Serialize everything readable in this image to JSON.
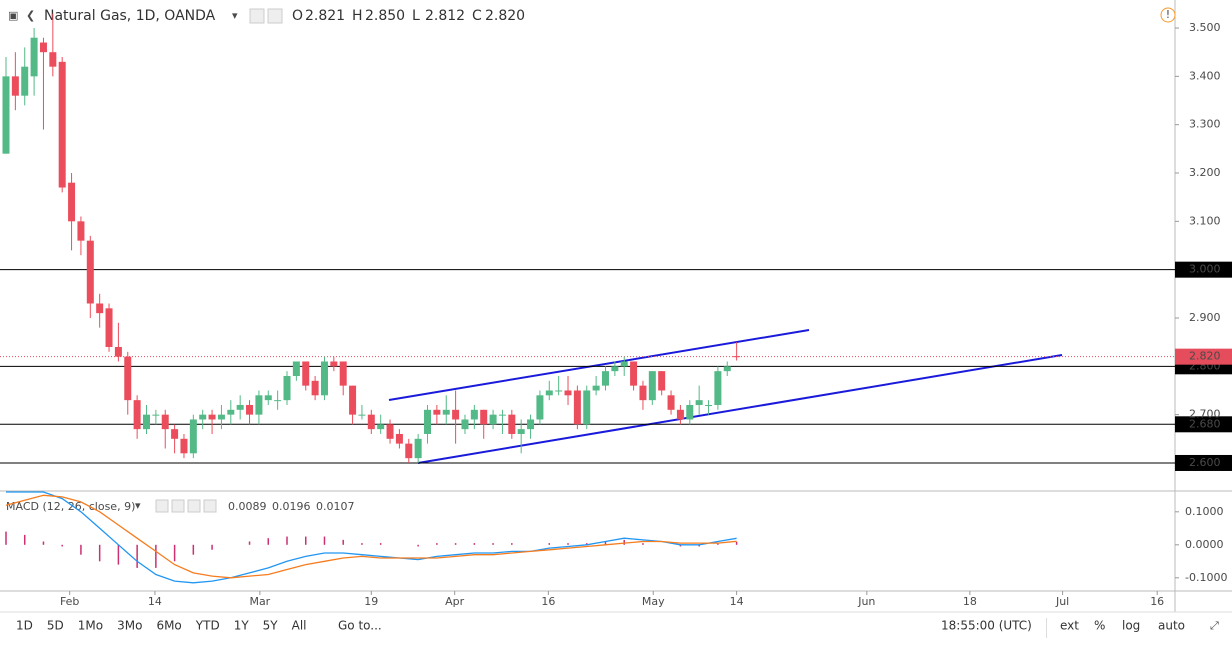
{
  "header": {
    "symbol": "Natural Gas, 1D, OANDA",
    "ohlc": [
      {
        "key": "O",
        "value": "2.821"
      },
      {
        "key": "H",
        "value": "2.850"
      },
      {
        "key": "L",
        "value": "2.812"
      },
      {
        "key": "C",
        "value": "2.820"
      }
    ]
  },
  "chart_data": [
    {
      "type": "candlestick",
      "up_color": "#53b987",
      "down_color": "#eb4d5c",
      "open": [
        3.24,
        3.4,
        3.36,
        3.4,
        3.47,
        3.45,
        3.43,
        3.18,
        3.1,
        3.06,
        2.93,
        2.92,
        2.84,
        2.82,
        2.73,
        2.67,
        2.7,
        2.7,
        2.67,
        2.65,
        2.62,
        2.69,
        2.7,
        2.69,
        2.7,
        2.71,
        2.72,
        2.7,
        2.73,
        2.73,
        2.73,
        2.78,
        2.81,
        2.77,
        2.74,
        2.81,
        2.81,
        2.76,
        2.7,
        2.7,
        2.67,
        2.68,
        2.66,
        2.64,
        2.61,
        2.66,
        2.71,
        2.7,
        2.71,
        2.67,
        2.69,
        2.71,
        2.68,
        2.7,
        2.7,
        2.66,
        2.67,
        2.69,
        2.74,
        2.75,
        2.75,
        2.75,
        2.68,
        2.75,
        2.76,
        2.79,
        2.8,
        2.81,
        2.76,
        2.73,
        2.79,
        2.74,
        2.71,
        2.69,
        2.72,
        2.72,
        2.72,
        2.79,
        2.821
      ],
      "high": [
        3.44,
        3.45,
        3.46,
        3.5,
        3.48,
        3.53,
        3.44,
        3.2,
        3.11,
        3.07,
        2.95,
        2.93,
        2.89,
        2.83,
        2.74,
        2.72,
        2.71,
        2.71,
        2.68,
        2.66,
        2.7,
        2.71,
        2.71,
        2.72,
        2.73,
        2.74,
        2.73,
        2.75,
        2.75,
        2.75,
        2.79,
        2.81,
        2.81,
        2.78,
        2.82,
        2.82,
        2.81,
        2.76,
        2.72,
        2.71,
        2.7,
        2.69,
        2.67,
        2.65,
        2.66,
        2.72,
        2.72,
        2.74,
        2.75,
        2.7,
        2.72,
        2.71,
        2.71,
        2.71,
        2.71,
        2.69,
        2.7,
        2.75,
        2.77,
        2.78,
        2.78,
        2.76,
        2.76,
        2.78,
        2.8,
        2.81,
        2.82,
        2.81,
        2.77,
        2.79,
        2.79,
        2.75,
        2.72,
        2.73,
        2.76,
        2.73,
        2.8,
        2.81,
        2.85
      ],
      "low": [
        3.24,
        3.33,
        3.34,
        3.36,
        3.29,
        3.4,
        3.16,
        3.04,
        3.03,
        2.9,
        2.88,
        2.83,
        2.81,
        2.7,
        2.65,
        2.66,
        2.68,
        2.63,
        2.62,
        2.61,
        2.61,
        2.67,
        2.66,
        2.67,
        2.68,
        2.69,
        2.68,
        2.68,
        2.72,
        2.71,
        2.72,
        2.77,
        2.75,
        2.73,
        2.73,
        2.79,
        2.74,
        2.68,
        2.69,
        2.66,
        2.66,
        2.64,
        2.63,
        2.6,
        2.6,
        2.64,
        2.68,
        2.68,
        2.64,
        2.66,
        2.67,
        2.65,
        2.67,
        2.66,
        2.65,
        2.62,
        2.65,
        2.68,
        2.73,
        2.74,
        2.72,
        2.67,
        2.67,
        2.74,
        2.75,
        2.78,
        2.78,
        2.75,
        2.71,
        2.72,
        2.74,
        2.7,
        2.68,
        2.68,
        2.7,
        2.7,
        2.71,
        2.78,
        2.812
      ],
      "close": [
        3.4,
        3.36,
        3.42,
        3.48,
        3.45,
        3.42,
        3.17,
        3.1,
        3.06,
        2.93,
        2.91,
        2.84,
        2.82,
        2.73,
        2.67,
        2.7,
        2.7,
        2.67,
        2.65,
        2.62,
        2.69,
        2.7,
        2.69,
        2.7,
        2.71,
        2.72,
        2.7,
        2.74,
        2.74,
        2.73,
        2.78,
        2.81,
        2.76,
        2.74,
        2.81,
        2.8,
        2.76,
        2.7,
        2.7,
        2.67,
        2.68,
        2.65,
        2.64,
        2.61,
        2.65,
        2.71,
        2.7,
        2.71,
        2.69,
        2.69,
        2.71,
        2.68,
        2.7,
        2.7,
        2.66,
        2.67,
        2.69,
        2.74,
        2.75,
        2.75,
        2.74,
        2.68,
        2.75,
        2.76,
        2.79,
        2.8,
        2.81,
        2.76,
        2.73,
        2.79,
        2.75,
        2.71,
        2.69,
        2.72,
        2.73,
        2.72,
        2.79,
        2.8,
        2.82
      ],
      "xlim": [
        -0.64,
        124.8
      ],
      "ylim": [
        2.542,
        3.558
      ],
      "xticks": [
        {
          "value": 6.8,
          "label": "Feb"
        },
        {
          "value": 15.9,
          "label": "14"
        },
        {
          "value": 27.1,
          "label": "Mar"
        },
        {
          "value": 39.0,
          "label": "19"
        },
        {
          "value": 47.9,
          "label": "Apr"
        },
        {
          "value": 57.9,
          "label": "16"
        },
        {
          "value": 69.1,
          "label": "May"
        },
        {
          "value": 78.0,
          "label": "14"
        },
        {
          "value": 91.9,
          "label": "Jun"
        },
        {
          "value": 102.9,
          "label": "18"
        },
        {
          "value": 112.8,
          "label": "Jul"
        },
        {
          "value": 122.9,
          "label": "16"
        }
      ],
      "yticks": [
        {
          "value": 3.5,
          "label": "3.500"
        },
        {
          "value": 3.4,
          "label": "3.400"
        },
        {
          "value": 3.3,
          "label": "3.300"
        },
        {
          "value": 3.2,
          "label": "3.200"
        },
        {
          "value": 3.1,
          "label": "3.100"
        },
        {
          "value": 2.9,
          "label": "2.900"
        },
        {
          "value": 2.7,
          "label": "2.700"
        }
      ],
      "levels": [
        {
          "value": 3.0,
          "label": "3.000"
        },
        {
          "value": 2.8,
          "label": "2.800"
        },
        {
          "value": 2.68,
          "label": "2.680"
        },
        {
          "value": 2.6,
          "label": "2.600"
        }
      ],
      "last_price": {
        "value": 2.82,
        "label": "2.820",
        "color": "#e54d5c"
      }
    },
    {
      "type": "macd",
      "title": "MACD (12, 26, close, 9)",
      "legend_values": [
        {
          "value": "0.0089",
          "color": "#cc2f72"
        },
        {
          "value": "0.0196",
          "color": "#2196f3"
        },
        {
          "value": "0.0107",
          "color": "#f57c1f"
        }
      ],
      "x": [
        0,
        2,
        4,
        6,
        8,
        10,
        12,
        14,
        16,
        18,
        20,
        22,
        24,
        26,
        28,
        30,
        32,
        34,
        36,
        38,
        40,
        42,
        44,
        46,
        48,
        50,
        52,
        54,
        56,
        58,
        60,
        62,
        64,
        66,
        68,
        70,
        72,
        74,
        76,
        78
      ],
      "series": [
        {
          "name": "MACD",
          "color": "#2196f3",
          "values": [
            0.16,
            0.16,
            0.16,
            0.14,
            0.1,
            0.05,
            0.0,
            -0.05,
            -0.09,
            -0.11,
            -0.115,
            -0.11,
            -0.1,
            -0.085,
            -0.07,
            -0.05,
            -0.035,
            -0.025,
            -0.025,
            -0.03,
            -0.035,
            -0.04,
            -0.045,
            -0.035,
            -0.03,
            -0.025,
            -0.025,
            -0.02,
            -0.02,
            -0.01,
            -0.005,
            0,
            0.01,
            0.02,
            0.015,
            0.01,
            0,
            0,
            0.01,
            0.0196
          ]
        },
        {
          "name": "Signal",
          "color": "#f57c1f",
          "values": [
            0.12,
            0.135,
            0.15,
            0.145,
            0.13,
            0.1,
            0.06,
            0.02,
            -0.02,
            -0.06,
            -0.085,
            -0.095,
            -0.1,
            -0.095,
            -0.09,
            -0.075,
            -0.06,
            -0.05,
            -0.04,
            -0.035,
            -0.04,
            -0.04,
            -0.04,
            -0.04,
            -0.035,
            -0.03,
            -0.03,
            -0.025,
            -0.02,
            -0.015,
            -0.01,
            -0.005,
            0,
            0.005,
            0.01,
            0.01,
            0.005,
            0.005,
            0.005,
            0.0107
          ]
        }
      ],
      "histogram": {
        "color": "#cc2f72",
        "values": [
          0.04,
          0.03,
          0.01,
          -0.005,
          -0.03,
          -0.05,
          -0.06,
          -0.07,
          -0.07,
          -0.05,
          -0.03,
          -0.015,
          0,
          0.01,
          0.02,
          0.025,
          0.025,
          0.025,
          0.015,
          0.005,
          0.005,
          0,
          -0.005,
          0.005,
          0.005,
          0.005,
          0.005,
          0.005,
          0,
          0.005,
          0.005,
          0.005,
          0.01,
          0.015,
          0.005,
          0,
          -0.005,
          -0.005,
          0.005,
          0.0089
        ]
      },
      "ylim": [
        -0.14,
        0.16
      ],
      "yticks": [
        {
          "value": 0.1,
          "label": "0.1000"
        },
        {
          "value": 0,
          "label": "0.0000"
        },
        {
          "value": -0.1,
          "label": "-0.1000"
        }
      ]
    }
  ],
  "toolbar": {
    "ranges": [
      "1D",
      "5D",
      "1Mo",
      "3Mo",
      "6Mo",
      "YTD",
      "1Y",
      "5Y",
      "All"
    ],
    "goto": "Go to...",
    "clock": "18:55:00 (UTC)",
    "options": [
      "ext",
      "%",
      "log",
      "auto"
    ]
  }
}
